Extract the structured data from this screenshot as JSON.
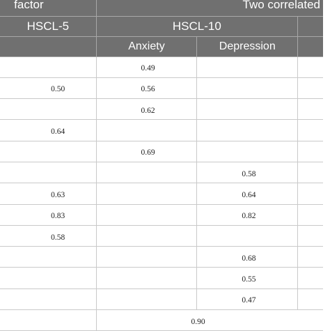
{
  "header": {
    "factor_label": "factor",
    "two_correlated_label": "Two correlated",
    "hscl5_label": "HSCL-5",
    "hscl10_label": "HSCL-10",
    "anxiety_label": "Anxiety",
    "depression_label": "Depression"
  },
  "rows": [
    {
      "hscl5": "",
      "anxiety": "0.49",
      "depression": ""
    },
    {
      "hscl5": "0.50",
      "anxiety": "0.56",
      "depression": ""
    },
    {
      "hscl5": "",
      "anxiety": "0.62",
      "depression": ""
    },
    {
      "hscl5": "0.64",
      "anxiety": "",
      "depression": ""
    },
    {
      "hscl5": "",
      "anxiety": "0.69",
      "depression": ""
    },
    {
      "hscl5": "",
      "anxiety": "",
      "depression": "0.58"
    },
    {
      "hscl5": "0.63",
      "anxiety": "",
      "depression": "0.64"
    },
    {
      "hscl5": "0.83",
      "anxiety": "",
      "depression": "0.82"
    },
    {
      "hscl5": "0.58",
      "anxiety": "",
      "depression": ""
    },
    {
      "hscl5": "",
      "anxiety": "",
      "depression": "0.68"
    },
    {
      "hscl5": "",
      "anxiety": "",
      "depression": "0.55"
    },
    {
      "hscl5": "",
      "anxiety": "",
      "depression": "0.47"
    }
  ],
  "last_row": {
    "value": "0.90"
  }
}
